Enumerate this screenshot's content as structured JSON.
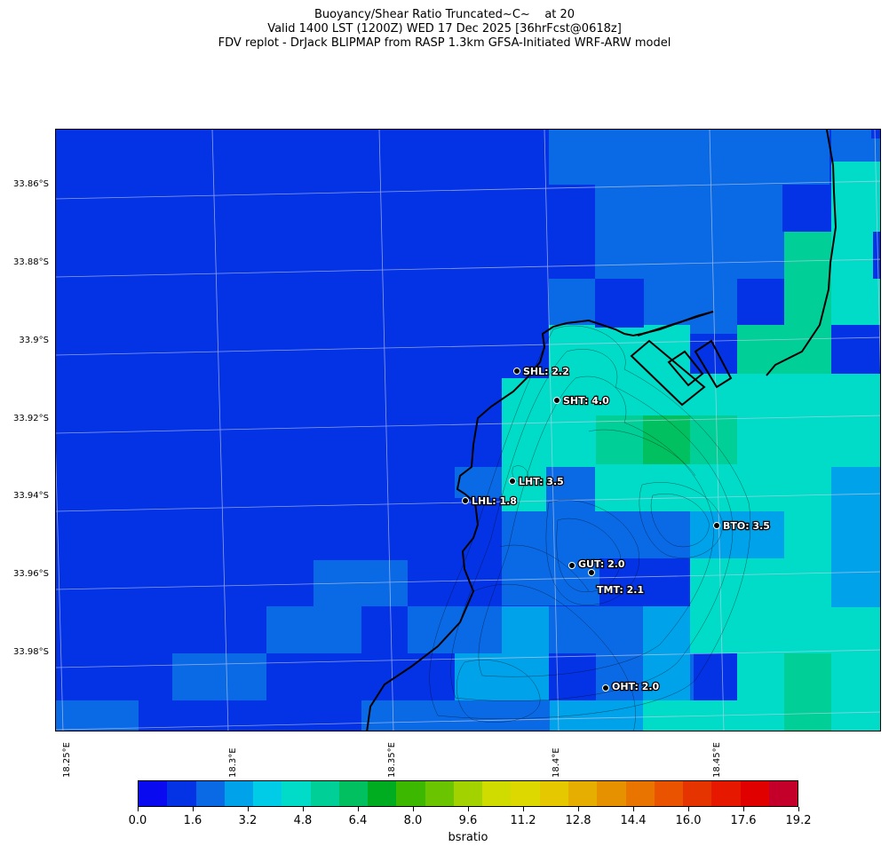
{
  "title": {
    "line1": "Buoyancy/Shear Ratio Truncated~C~    at 20",
    "line2": "Valid 1400 LST (1200Z) WED 17 Dec 2025 [36hrFcst@0618z]",
    "line3": "FDV replot - DrJack BLIPMAP from RASP 1.3km GFSA-Initiated WRF-ARW model"
  },
  "axes": {
    "lat_labels": [
      "33.86°S",
      "33.88°S",
      "33.9°S",
      "33.92°S",
      "33.94°S",
      "33.96°S",
      "33.98°S"
    ],
    "lon_labels": [
      "18.25°E",
      "18.3°E",
      "18.35°E",
      "18.4°E",
      "18.45°E"
    ]
  },
  "stations": [
    {
      "id": "SHL",
      "label": "SHL: 2.2"
    },
    {
      "id": "SHT",
      "label": "SHT: 4.0"
    },
    {
      "id": "LHT",
      "label": "LHT: 3.5"
    },
    {
      "id": "LHL",
      "label": "LHL: 1.8"
    },
    {
      "id": "BTO",
      "label": "BTO: 3.5"
    },
    {
      "id": "GUT",
      "label": "GUT: 2.0"
    },
    {
      "id": "TMT",
      "label": "TMT: 2.1"
    },
    {
      "id": "OHT",
      "label": "OHT: 2.0"
    }
  ],
  "colorbar": {
    "label": "bsratio",
    "ticks": [
      "0.0",
      "1.6",
      "3.2",
      "4.8",
      "6.4",
      "8.0",
      "9.6",
      "11.2",
      "12.8",
      "14.4",
      "16.0",
      "17.6",
      "19.2"
    ],
    "colors": [
      "#0a0af0",
      "#0433e6",
      "#0a6ae6",
      "#00a2ea",
      "#00cce8",
      "#00dcc8",
      "#00d098",
      "#00c060",
      "#00ac20",
      "#3cb800",
      "#6ac400",
      "#a2d200",
      "#d0dc00",
      "#dcd800",
      "#e6c800",
      "#e6ae00",
      "#e69200",
      "#ea7400",
      "#ea5400",
      "#e63400",
      "#e61800",
      "#e00000",
      "#c4002a"
    ]
  }
}
